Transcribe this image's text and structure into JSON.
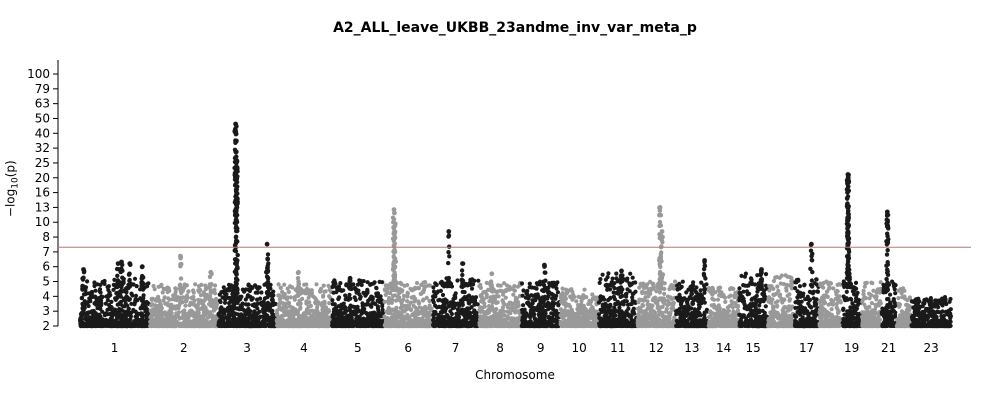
{
  "chart_data": {
    "type": "scatter",
    "title": "A2_ALL_leave_UKBB_23andme_inv_var_meta_p",
    "xlabel": "Chromosome",
    "ylabel": "−log₁₀(p)",
    "y_scale": "log-like (tick spacing compressed at top)",
    "ylim": [
      2,
      100
    ],
    "y_ticks": [
      2,
      3,
      4,
      5,
      6,
      7,
      8,
      10,
      13,
      16,
      20,
      25,
      32,
      40,
      50,
      63,
      79,
      100
    ],
    "x_ticks": [
      "1",
      "2",
      "3",
      "4",
      "5",
      "6",
      "7",
      "8",
      "9",
      "10",
      "11",
      "12",
      "13",
      "14",
      "15",
      "17",
      "19",
      "21",
      "23"
    ],
    "significance_line": 7.3,
    "significance_color": "#e06666",
    "colors": {
      "odd": "#1a1a1a",
      "even": "#999999"
    },
    "chromosomes": [
      {
        "chr": "1",
        "base": 4.6,
        "peaks": [
          [
            0.05,
            5.8
          ],
          [
            0.55,
            6.2
          ],
          [
            0.6,
            6.3
          ],
          [
            0.72,
            6.2
          ],
          [
            0.9,
            6.0
          ]
        ]
      },
      {
        "chr": "2",
        "base": 4.2,
        "peaks": [
          [
            0.45,
            6.7
          ],
          [
            0.9,
            5.6
          ]
        ]
      },
      {
        "chr": "3",
        "base": 4.2,
        "peaks": [
          [
            0.3,
            46
          ],
          [
            0.32,
            26
          ],
          [
            0.85,
            7.5
          ],
          [
            0.86,
            6.5
          ]
        ]
      },
      {
        "chr": "4",
        "base": 4.2,
        "peaks": [
          [
            0.4,
            5.6
          ]
        ]
      },
      {
        "chr": "5",
        "base": 4.5,
        "peaks": [
          [
            0.35,
            5.2
          ]
        ]
      },
      {
        "chr": "6",
        "base": 4.4,
        "peaks": [
          [
            0.2,
            12.5
          ],
          [
            0.21,
            11.8
          ],
          [
            0.22,
            7.0
          ]
        ]
      },
      {
        "chr": "7",
        "base": 4.6,
        "peaks": [
          [
            0.35,
            8.7
          ],
          [
            0.65,
            6.2
          ]
        ]
      },
      {
        "chr": "8",
        "base": 4.3,
        "peaks": [
          [
            0.3,
            5.5
          ]
        ]
      },
      {
        "chr": "9",
        "base": 4.4,
        "peaks": [
          [
            0.6,
            6.1
          ]
        ]
      },
      {
        "chr": "10",
        "base": 4.0,
        "peaks": []
      },
      {
        "chr": "11",
        "base": 5.0,
        "peaks": [
          [
            0.6,
            5.7
          ]
        ]
      },
      {
        "chr": "12",
        "base": 4.5,
        "peaks": [
          [
            0.6,
            13
          ],
          [
            0.62,
            8.2
          ],
          [
            0.65,
            8.7
          ]
        ]
      },
      {
        "chr": "13",
        "base": 4.4,
        "peaks": [
          [
            0.9,
            6.4
          ]
        ]
      },
      {
        "chr": "14",
        "base": 4.0,
        "peaks": []
      },
      {
        "chr": "15",
        "base": 5.0,
        "peaks": [
          [
            0.8,
            5.8
          ]
        ]
      },
      {
        "chr": "16",
        "base": 4.8,
        "peaks": []
      },
      {
        "chr": "17",
        "base": 4.6,
        "peaks": [
          [
            0.7,
            7.5
          ]
        ]
      },
      {
        "chr": "18",
        "base": 4.4,
        "peaks": []
      },
      {
        "chr": "19",
        "base": 4.6,
        "peaks": [
          [
            0.3,
            21
          ],
          [
            0.32,
            10.5
          ],
          [
            0.35,
            7.9
          ]
        ]
      },
      {
        "chr": "20",
        "base": 4.4,
        "peaks": []
      },
      {
        "chr": "21",
        "base": 4.4,
        "peaks": [
          [
            0.4,
            12
          ],
          [
            0.42,
            9.5
          ]
        ]
      },
      {
        "chr": "22",
        "base": 4.0,
        "peaks": []
      },
      {
        "chr": "23",
        "base": 3.4,
        "peaks": []
      }
    ]
  }
}
